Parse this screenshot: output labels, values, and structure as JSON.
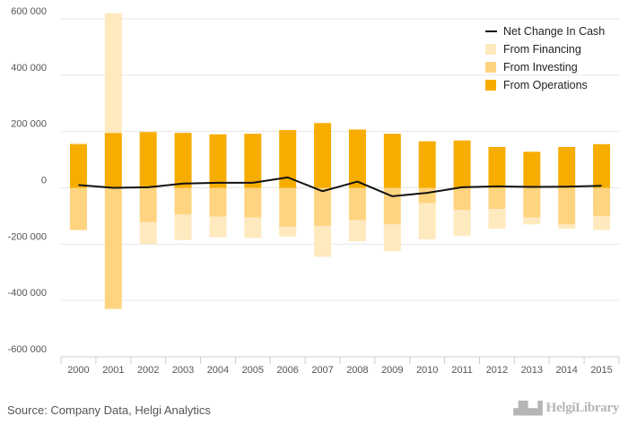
{
  "chart_data": {
    "type": "bar",
    "stacked": true,
    "categories": [
      "2000",
      "2001",
      "2002",
      "2003",
      "2004",
      "2005",
      "2006",
      "2007",
      "2008",
      "2009",
      "2010",
      "2011",
      "2012",
      "2013",
      "2014",
      "2015"
    ],
    "series": [
      {
        "name": "From Operations",
        "kind": "bar",
        "color": "#f7ad00",
        "values": [
          155000,
          195000,
          198000,
          195000,
          190000,
          192000,
          205000,
          230000,
          207000,
          192000,
          165000,
          168000,
          145000,
          128000,
          145000,
          155000
        ]
      },
      {
        "name": "From Investing",
        "kind": "bar",
        "color": "#ffd480",
        "values": [
          -150000,
          -430000,
          -122000,
          -95000,
          -102000,
          -105000,
          -138000,
          -135000,
          -115000,
          -130000,
          -55000,
          -78000,
          -75000,
          -105000,
          -130000,
          -100000
        ]
      },
      {
        "name": "From Financing",
        "kind": "bar",
        "color": "#ffe9bf",
        "values": [
          5000,
          425000,
          -78000,
          -90000,
          -73000,
          -73000,
          -35000,
          -110000,
          -75000,
          -95000,
          -128000,
          -92000,
          -70000,
          -25000,
          -15000,
          -50000
        ]
      },
      {
        "name": "Net Change In Cash",
        "kind": "line",
        "color": "#111111",
        "values": [
          10000,
          0,
          2000,
          15000,
          18000,
          18000,
          37000,
          -12000,
          22000,
          -30000,
          -18000,
          2000,
          5000,
          3000,
          4000,
          7000
        ]
      }
    ],
    "ylim": [
      -600000,
      600000
    ],
    "yticks": [
      -600000,
      -400000,
      -200000,
      0,
      200000,
      400000,
      600000
    ],
    "ytick_labels": [
      "-600 000",
      "-400 000",
      "-200 000",
      "0",
      "200 000",
      "400 000",
      "600 000"
    ],
    "grid": true,
    "legend_position": "top-right",
    "legend_order": [
      "Net Change In Cash",
      "From Financing",
      "From Investing",
      "From Operations"
    ]
  },
  "footer": {
    "source": "Source: Company Data, Helgi Analytics",
    "logo_text": "HelgiLibrary",
    "logo_icon": "city-skyline-icon"
  }
}
